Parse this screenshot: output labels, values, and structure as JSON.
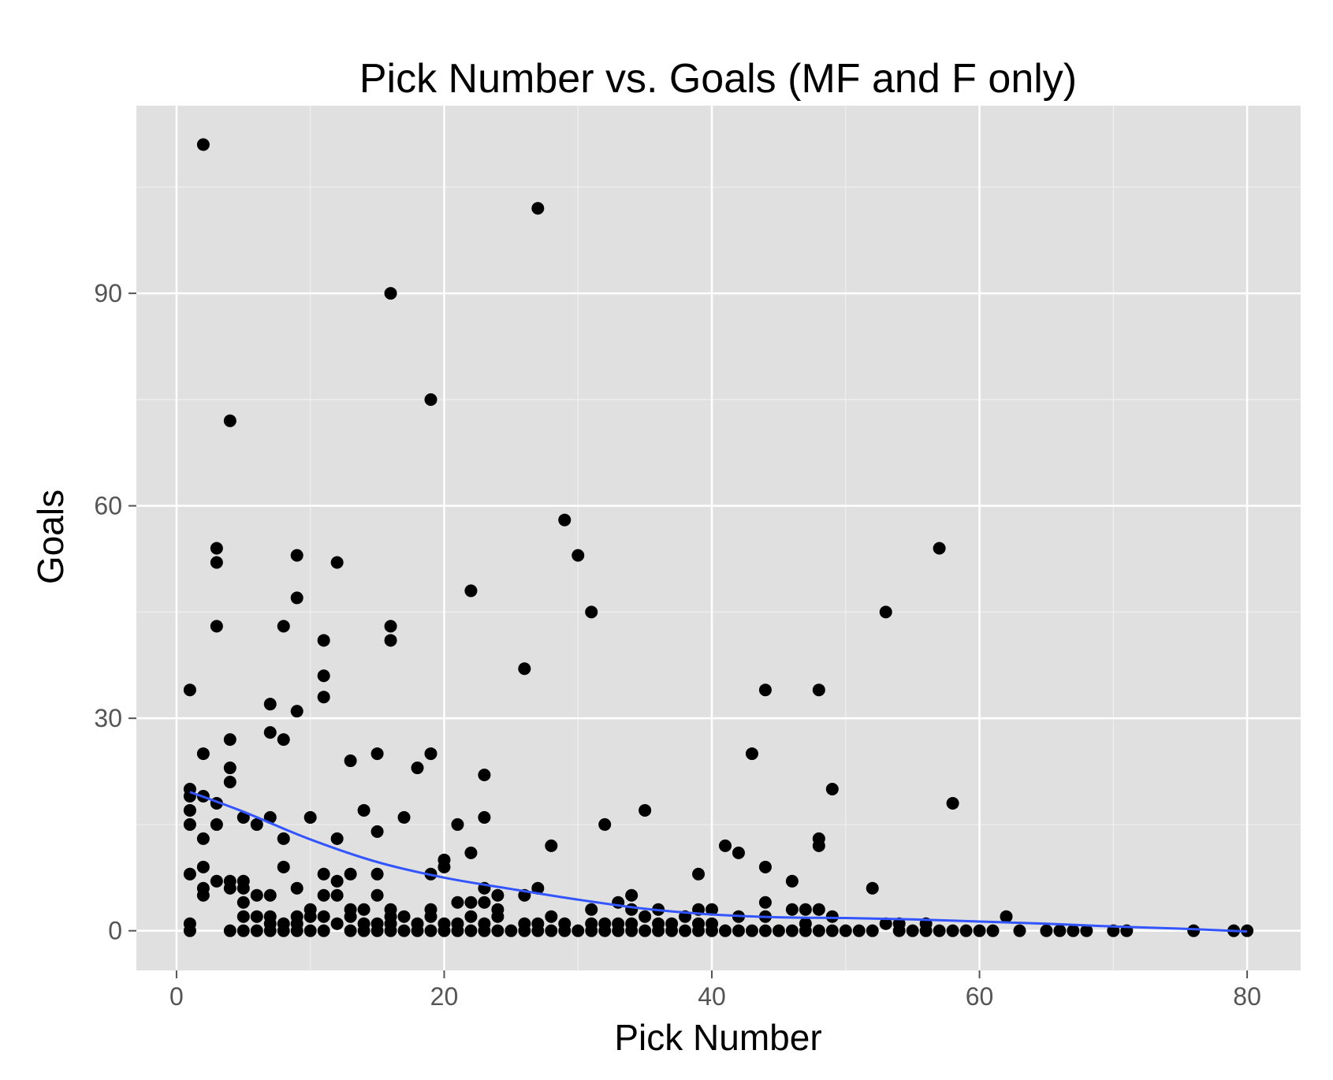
{
  "chart_data": {
    "type": "scatter",
    "title": "Pick Number vs. Goals (MF and F only)",
    "xlabel": "Pick Number",
    "ylabel": "Goals",
    "xlim": [
      -3,
      84
    ],
    "ylim": [
      -5.6,
      116.5
    ],
    "x_ticks": [
      0,
      20,
      40,
      60,
      80
    ],
    "y_ticks": [
      0,
      30,
      60,
      90
    ],
    "x_tick_labels": [
      "0",
      "20",
      "40",
      "60",
      "80"
    ],
    "y_tick_labels": [
      "0",
      "30",
      "60",
      "90"
    ],
    "grid": true,
    "colors": {
      "panel_background": "#e0e0e0",
      "grid_major": "#ffffff",
      "grid_minor": "#f0f0f0",
      "points": "#000000",
      "smooth_line": "#3355ff",
      "tick_label": "#555555"
    },
    "series": [
      {
        "type": "scatter",
        "points": [
          [
            2,
            111
          ],
          [
            27,
            102
          ],
          [
            16,
            90
          ],
          [
            19,
            75
          ],
          [
            4,
            72
          ],
          [
            29,
            58
          ],
          [
            3,
            54
          ],
          [
            57,
            54
          ],
          [
            3,
            52
          ],
          [
            9,
            53
          ],
          [
            12,
            52
          ],
          [
            30,
            53
          ],
          [
            22,
            48
          ],
          [
            9,
            47
          ],
          [
            31,
            45
          ],
          [
            53,
            45
          ],
          [
            3,
            43
          ],
          [
            8,
            43
          ],
          [
            16,
            43
          ],
          [
            16,
            41
          ],
          [
            11,
            41
          ],
          [
            26,
            37
          ],
          [
            11,
            36
          ],
          [
            1,
            34
          ],
          [
            44,
            34
          ],
          [
            48,
            34
          ],
          [
            11,
            33
          ],
          [
            7,
            32
          ],
          [
            9,
            31
          ],
          [
            7,
            28
          ],
          [
            4,
            27
          ],
          [
            8,
            27
          ],
          [
            2,
            25
          ],
          [
            15,
            25
          ],
          [
            19,
            25
          ],
          [
            43,
            25
          ],
          [
            13,
            24
          ],
          [
            4,
            23
          ],
          [
            18,
            23
          ],
          [
            23,
            22
          ],
          [
            4,
            21
          ],
          [
            1,
            20
          ],
          [
            49,
            20
          ],
          [
            1,
            19
          ],
          [
            2,
            19
          ],
          [
            3,
            18
          ],
          [
            58,
            18
          ],
          [
            1,
            17
          ],
          [
            14,
            17
          ],
          [
            35,
            17
          ],
          [
            5,
            16
          ],
          [
            7,
            16
          ],
          [
            10,
            16
          ],
          [
            17,
            16
          ],
          [
            23,
            16
          ],
          [
            1,
            15
          ],
          [
            3,
            15
          ],
          [
            6,
            15
          ],
          [
            21,
            15
          ],
          [
            32,
            15
          ],
          [
            15,
            14
          ],
          [
            2,
            13
          ],
          [
            8,
            13
          ],
          [
            12,
            13
          ],
          [
            48,
            13
          ],
          [
            28,
            12
          ],
          [
            41,
            12
          ],
          [
            48,
            12
          ],
          [
            22,
            11
          ],
          [
            42,
            11
          ],
          [
            20,
            10
          ],
          [
            2,
            9
          ],
          [
            8,
            9
          ],
          [
            20,
            9
          ],
          [
            44,
            9
          ],
          [
            1,
            8
          ],
          [
            11,
            8
          ],
          [
            13,
            8
          ],
          [
            15,
            8
          ],
          [
            19,
            8
          ],
          [
            39,
            8
          ],
          [
            3,
            7
          ],
          [
            4,
            7
          ],
          [
            5,
            7
          ],
          [
            12,
            7
          ],
          [
            46,
            7
          ],
          [
            2,
            6
          ],
          [
            4,
            6
          ],
          [
            5,
            6
          ],
          [
            9,
            6
          ],
          [
            23,
            6
          ],
          [
            27,
            6
          ],
          [
            52,
            6
          ],
          [
            2,
            5
          ],
          [
            6,
            5
          ],
          [
            7,
            5
          ],
          [
            11,
            5
          ],
          [
            12,
            5
          ],
          [
            15,
            5
          ],
          [
            24,
            5
          ],
          [
            26,
            5
          ],
          [
            34,
            5
          ],
          [
            5,
            4
          ],
          [
            21,
            4
          ],
          [
            22,
            4
          ],
          [
            23,
            4
          ],
          [
            33,
            4
          ],
          [
            44,
            4
          ],
          [
            10,
            3
          ],
          [
            13,
            3
          ],
          [
            14,
            3
          ],
          [
            16,
            3
          ],
          [
            19,
            3
          ],
          [
            24,
            3
          ],
          [
            31,
            3
          ],
          [
            34,
            3
          ],
          [
            36,
            3
          ],
          [
            39,
            3
          ],
          [
            40,
            3
          ],
          [
            46,
            3
          ],
          [
            47,
            3
          ],
          [
            48,
            3
          ],
          [
            5,
            2
          ],
          [
            6,
            2
          ],
          [
            7,
            2
          ],
          [
            9,
            2
          ],
          [
            10,
            2
          ],
          [
            11,
            2
          ],
          [
            13,
            2
          ],
          [
            16,
            2
          ],
          [
            17,
            2
          ],
          [
            19,
            2
          ],
          [
            22,
            2
          ],
          [
            24,
            2
          ],
          [
            28,
            2
          ],
          [
            35,
            2
          ],
          [
            38,
            2
          ],
          [
            42,
            2
          ],
          [
            44,
            2
          ],
          [
            49,
            2
          ],
          [
            62,
            2
          ],
          [
            1,
            1
          ],
          [
            7,
            1
          ],
          [
            8,
            1
          ],
          [
            9,
            1
          ],
          [
            12,
            1
          ],
          [
            14,
            1
          ],
          [
            15,
            1
          ],
          [
            16,
            1
          ],
          [
            18,
            1
          ],
          [
            20,
            1
          ],
          [
            21,
            1
          ],
          [
            23,
            1
          ],
          [
            26,
            1
          ],
          [
            27,
            1
          ],
          [
            29,
            1
          ],
          [
            31,
            1
          ],
          [
            32,
            1
          ],
          [
            33,
            1
          ],
          [
            34,
            1
          ],
          [
            36,
            1
          ],
          [
            37,
            1
          ],
          [
            39,
            1
          ],
          [
            40,
            1
          ],
          [
            47,
            1
          ],
          [
            53,
            1
          ],
          [
            54,
            1
          ],
          [
            56,
            1
          ],
          [
            1,
            0
          ],
          [
            4,
            0
          ],
          [
            5,
            0
          ],
          [
            6,
            0
          ],
          [
            7,
            0
          ],
          [
            8,
            0
          ],
          [
            9,
            0
          ],
          [
            10,
            0
          ],
          [
            11,
            0
          ],
          [
            13,
            0
          ],
          [
            14,
            0
          ],
          [
            15,
            0
          ],
          [
            16,
            0
          ],
          [
            17,
            0
          ],
          [
            18,
            0
          ],
          [
            19,
            0
          ],
          [
            20,
            0
          ],
          [
            21,
            0
          ],
          [
            22,
            0
          ],
          [
            23,
            0
          ],
          [
            24,
            0
          ],
          [
            25,
            0
          ],
          [
            26,
            0
          ],
          [
            27,
            0
          ],
          [
            28,
            0
          ],
          [
            29,
            0
          ],
          [
            30,
            0
          ],
          [
            31,
            0
          ],
          [
            32,
            0
          ],
          [
            33,
            0
          ],
          [
            34,
            0
          ],
          [
            35,
            0
          ],
          [
            36,
            0
          ],
          [
            37,
            0
          ],
          [
            38,
            0
          ],
          [
            39,
            0
          ],
          [
            40,
            0
          ],
          [
            41,
            0
          ],
          [
            42,
            0
          ],
          [
            43,
            0
          ],
          [
            44,
            0
          ],
          [
            45,
            0
          ],
          [
            46,
            0
          ],
          [
            47,
            0
          ],
          [
            48,
            0
          ],
          [
            49,
            0
          ],
          [
            50,
            0
          ],
          [
            51,
            0
          ],
          [
            52,
            0
          ],
          [
            54,
            0
          ],
          [
            55,
            0
          ],
          [
            56,
            0
          ],
          [
            57,
            0
          ],
          [
            58,
            0
          ],
          [
            59,
            0
          ],
          [
            60,
            0
          ],
          [
            61,
            0
          ],
          [
            63,
            0
          ],
          [
            65,
            0
          ],
          [
            66,
            0
          ],
          [
            67,
            0
          ],
          [
            68,
            0
          ],
          [
            70,
            0
          ],
          [
            71,
            0
          ],
          [
            76,
            0
          ],
          [
            79,
            0
          ],
          [
            80,
            0
          ]
        ]
      },
      {
        "type": "smooth_line",
        "points": [
          [
            1,
            19.6
          ],
          [
            5,
            16.8
          ],
          [
            10,
            12.9
          ],
          [
            15,
            9.7
          ],
          [
            20,
            7.5
          ],
          [
            25,
            5.9
          ],
          [
            30,
            4.4
          ],
          [
            35,
            3.1
          ],
          [
            40,
            2.3
          ],
          [
            45,
            1.9
          ],
          [
            50,
            1.8
          ],
          [
            55,
            1.6
          ],
          [
            60,
            1.3
          ],
          [
            65,
            1.0
          ],
          [
            70,
            0.6
          ],
          [
            75,
            0.3
          ],
          [
            80,
            -0.1
          ]
        ]
      }
    ]
  }
}
